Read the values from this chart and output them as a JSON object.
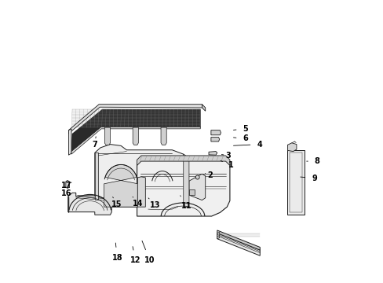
{
  "background_color": "#ffffff",
  "line_color": "#1a1a1a",
  "fig_width": 4.89,
  "fig_height": 3.6,
  "dpi": 100,
  "label_data": [
    [
      1,
      0.64,
      0.415,
      0.595,
      0.435
    ],
    [
      2,
      0.565,
      0.38,
      0.54,
      0.39
    ],
    [
      3,
      0.63,
      0.45,
      0.598,
      0.455
    ],
    [
      4,
      0.74,
      0.49,
      0.64,
      0.485
    ],
    [
      5,
      0.69,
      0.545,
      0.64,
      0.54
    ],
    [
      6,
      0.69,
      0.51,
      0.64,
      0.515
    ],
    [
      7,
      0.155,
      0.49,
      0.16,
      0.525
    ],
    [
      8,
      0.945,
      0.43,
      0.9,
      0.43
    ],
    [
      9,
      0.935,
      0.37,
      0.878,
      0.375
    ],
    [
      10,
      0.35,
      0.08,
      0.32,
      0.155
    ],
    [
      11,
      0.48,
      0.27,
      0.455,
      0.315
    ],
    [
      12,
      0.3,
      0.078,
      0.288,
      0.135
    ],
    [
      13,
      0.37,
      0.275,
      0.34,
      0.305
    ],
    [
      14,
      0.308,
      0.28,
      0.285,
      0.31
    ],
    [
      15,
      0.233,
      0.278,
      0.215,
      0.31
    ],
    [
      16,
      0.055,
      0.315,
      0.068,
      0.345
    ],
    [
      17,
      0.055,
      0.345,
      0.072,
      0.355
    ],
    [
      18,
      0.235,
      0.088,
      0.228,
      0.148
    ]
  ]
}
